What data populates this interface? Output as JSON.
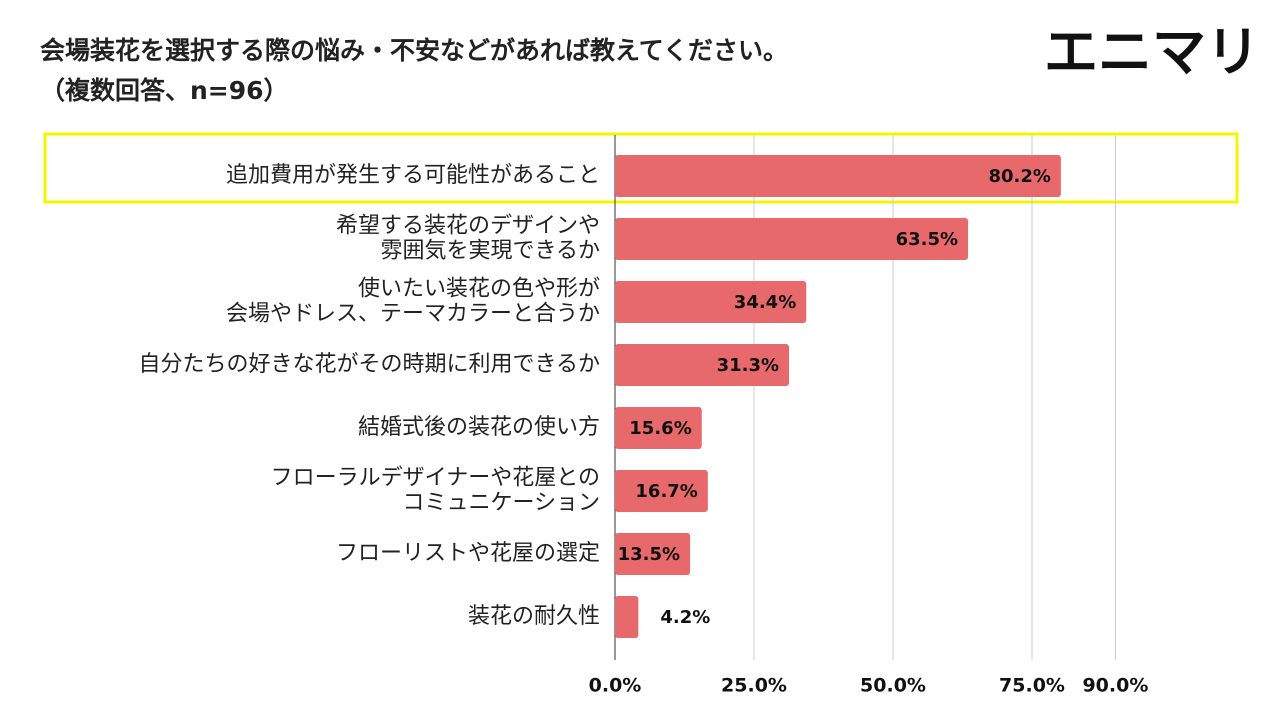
{
  "chart_data": {
    "type": "barh",
    "title": "会場装花を選択する際の悩み・不安などがあれば教えてください。",
    "subtitle": "（複数回答、n=96）",
    "logo": "エニマリ",
    "categories": [
      [
        "追加費用が発生する可能性があること"
      ],
      [
        "希望する装花のデザインや",
        "雰囲気を実現できるか"
      ],
      [
        "使いたい装花の色や形が",
        "会場やドレス、テーマカラーと合うか"
      ],
      [
        "自分たちの好きな花がその時期に利用できるか"
      ],
      [
        "結婚式後の装花の使い方"
      ],
      [
        "フローラルデザイナーや花屋との",
        "コミュニケーション"
      ],
      [
        "フローリストや花屋の選定"
      ],
      [
        "装花の耐久性"
      ]
    ],
    "values": [
      80.2,
      63.5,
      34.4,
      31.3,
      15.6,
      16.7,
      13.5,
      4.2
    ],
    "value_labels": [
      "80.2%",
      "63.5%",
      "34.4%",
      "31.3%",
      "15.6%",
      "16.7%",
      "13.5%",
      "4.2%"
    ],
    "color": "#e8696b",
    "xlim": [
      0,
      100
    ],
    "xticks": [
      {
        "value": 0,
        "label": "0.0%"
      },
      {
        "value": 25,
        "label": "25.0%"
      },
      {
        "value": 50,
        "label": "50.0%"
      },
      {
        "value": 75,
        "label": "75.0%"
      },
      {
        "value": 90,
        "label": "90.0%"
      }
    ],
    "grid": true
  }
}
